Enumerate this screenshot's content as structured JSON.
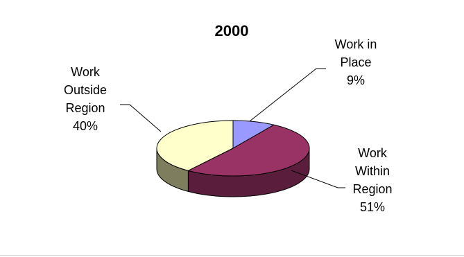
{
  "chart_data": {
    "type": "pie",
    "title": "2000",
    "three_d": true,
    "slices": [
      {
        "label_lines": [
          "Work in",
          "Place"
        ],
        "percent_label": "9%",
        "value": 9,
        "color": "#9999FF",
        "side_color": "#5F5FA0"
      },
      {
        "label_lines": [
          "Work",
          "Within",
          "Region"
        ],
        "percent_label": "51%",
        "value": 51,
        "color": "#993366",
        "side_color": "#5A1E3C"
      },
      {
        "label_lines": [
          "Work",
          "Outside",
          "Region"
        ],
        "percent_label": "40%",
        "value": 40,
        "color": "#FFFFCC",
        "side_color": "#7E7E5E"
      }
    ]
  }
}
